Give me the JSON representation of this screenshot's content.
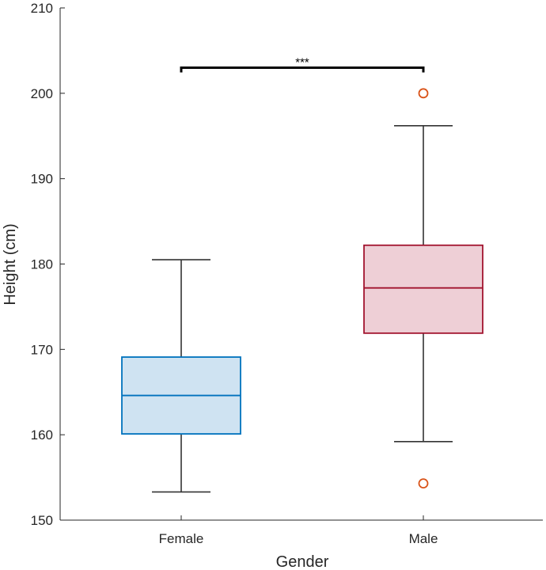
{
  "chart_data": {
    "type": "box",
    "title": "",
    "xlabel": "Gender",
    "ylabel": "Height (cm)",
    "ylim": [
      150,
      210
    ],
    "yticks": [
      150,
      160,
      170,
      180,
      190,
      200,
      210
    ],
    "categories": [
      "Female",
      "Male"
    ],
    "boxes": [
      {
        "name": "Female",
        "whisker_low": 153.3,
        "q1": 160.1,
        "median": 164.6,
        "q3": 169.1,
        "whisker_high": 180.5,
        "outliers": [],
        "edge_color": "#0072bd",
        "fill_color": "#cfe3f2"
      },
      {
        "name": "Male",
        "whisker_low": 159.2,
        "q1": 171.9,
        "median": 177.2,
        "q3": 182.2,
        "whisker_high": 196.2,
        "outliers": [
          200.0,
          154.3
        ],
        "edge_color": "#a2142f",
        "fill_color": "#eecfd6"
      }
    ],
    "outlier_color": "#d95319",
    "significance": {
      "from": "Female",
      "to": "Male",
      "y": 203,
      "label": "***"
    }
  }
}
